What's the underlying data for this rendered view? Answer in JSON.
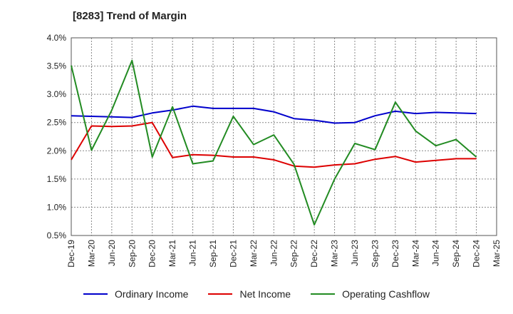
{
  "chart_data": {
    "type": "line",
    "title": "[8283]  Trend of Margin",
    "xlabel": "",
    "ylabel": "",
    "ylim": [
      0.5,
      4.0
    ],
    "yticks": [
      "0.5%",
      "1.0%",
      "1.5%",
      "2.0%",
      "2.5%",
      "3.0%",
      "3.5%",
      "4.0%"
    ],
    "ytick_values": [
      0.5,
      1.0,
      1.5,
      2.0,
      2.5,
      3.0,
      3.5,
      4.0
    ],
    "categories": [
      "Dec-19",
      "Mar-20",
      "Jun-20",
      "Sep-20",
      "Dec-20",
      "Mar-21",
      "Jun-21",
      "Sep-21",
      "Dec-21",
      "Mar-22",
      "Jun-22",
      "Sep-22",
      "Dec-22",
      "Mar-23",
      "Jun-23",
      "Sep-23",
      "Dec-23",
      "Mar-24",
      "Jun-24",
      "Sep-24",
      "Dec-24",
      "Mar-25"
    ],
    "grid": true,
    "legend_position": "bottom",
    "series": [
      {
        "name": "Ordinary Income",
        "color": "#0000cc",
        "values": [
          2.62,
          2.61,
          2.6,
          2.59,
          2.67,
          2.72,
          2.79,
          2.75,
          2.75,
          2.75,
          2.69,
          2.57,
          2.54,
          2.49,
          2.5,
          2.62,
          2.7,
          2.66,
          2.68,
          2.67,
          2.66,
          null
        ]
      },
      {
        "name": "Net Income",
        "color": "#dd0000",
        "values": [
          1.84,
          2.44,
          2.43,
          2.44,
          2.5,
          1.88,
          1.93,
          1.92,
          1.89,
          1.89,
          1.84,
          1.73,
          1.71,
          1.75,
          1.77,
          1.85,
          1.9,
          1.8,
          1.83,
          1.86,
          1.86,
          null
        ]
      },
      {
        "name": "Operating Cashflow",
        "color": "#228b22",
        "values": [
          3.51,
          2.01,
          2.72,
          3.6,
          1.89,
          2.78,
          1.77,
          1.82,
          2.61,
          2.11,
          2.28,
          1.76,
          0.69,
          1.5,
          2.13,
          2.02,
          2.86,
          2.35,
          2.09,
          2.2,
          1.89,
          null
        ]
      }
    ]
  }
}
